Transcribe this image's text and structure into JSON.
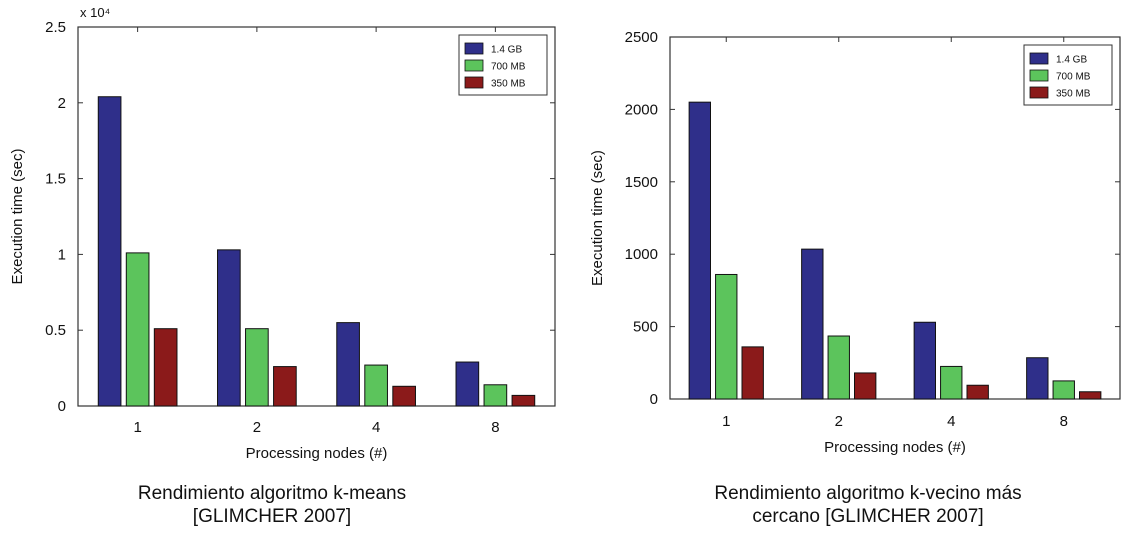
{
  "colors": {
    "s1": "#2f2f8a",
    "s2": "#5cc45c",
    "s3": "#8b1a1a"
  },
  "chart_data": [
    {
      "type": "bar",
      "title": "",
      "caption_line1": "Rendimiento algoritmo k-means",
      "caption_line2": "[GLIMCHER 2007]",
      "xlabel": "Processing nodes (#)",
      "ylabel": "Execution time (sec)",
      "y_multiplier": "x 10⁴",
      "categories": [
        "1",
        "2",
        "4",
        "8"
      ],
      "ylim": [
        0,
        2.5
      ],
      "yticks": [
        0,
        0.5,
        1,
        1.5,
        2,
        2.5
      ],
      "ytick_labels": [
        "0",
        "0.5",
        "1",
        "1.5",
        "2",
        "2.5"
      ],
      "legend_position": "top-right",
      "grid": false,
      "series": [
        {
          "name": "1.4 GB",
          "values": [
            2.04,
            1.03,
            0.55,
            0.29
          ]
        },
        {
          "name": "700 MB",
          "values": [
            1.01,
            0.51,
            0.27,
            0.14
          ]
        },
        {
          "name": "350 MB",
          "values": [
            0.51,
            0.26,
            0.13,
            0.07
          ]
        }
      ]
    },
    {
      "type": "bar",
      "title": "",
      "caption_line1": "Rendimiento algoritmo k-vecino más",
      "caption_line2": "cercano [GLIMCHER 2007]",
      "xlabel": "Processing nodes (#)",
      "ylabel": "Execution time (sec)",
      "y_multiplier": "",
      "categories": [
        "1",
        "2",
        "4",
        "8"
      ],
      "ylim": [
        0,
        2500
      ],
      "yticks": [
        0,
        500,
        1000,
        1500,
        2000,
        2500
      ],
      "ytick_labels": [
        "0",
        "500",
        "1000",
        "1500",
        "2000",
        "2500"
      ],
      "legend_position": "top-right",
      "grid": false,
      "series": [
        {
          "name": "1.4 GB",
          "values": [
            2050,
            1035,
            530,
            285
          ]
        },
        {
          "name": "700 MB",
          "values": [
            860,
            435,
            225,
            125
          ]
        },
        {
          "name": "350 MB",
          "values": [
            360,
            180,
            95,
            50
          ]
        }
      ]
    }
  ]
}
